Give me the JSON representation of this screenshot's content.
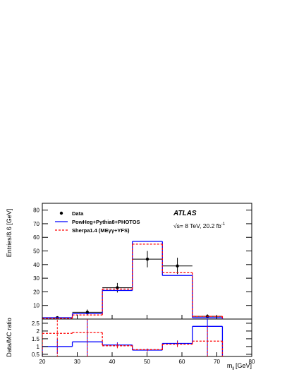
{
  "chart_data": [
    {
      "type": "histogram",
      "y_label": "Entries/8.6 [GeV]",
      "annotations": {
        "experiment": "ATLAS",
        "energy": "√s= 8 TeV, 20.2 fb",
        "energy_superscript": "-1"
      },
      "bins": [
        20,
        28.6,
        37.2,
        45.8,
        54.4,
        63,
        71.6
      ],
      "xlim": [
        20,
        80
      ],
      "ylim": [
        0,
        85
      ],
      "yticks": [
        10,
        20,
        30,
        40,
        50,
        60,
        70,
        80
      ],
      "legend": "top-left",
      "series": [
        {
          "name": "Data",
          "style": "points",
          "color": "#000000",
          "values": [
            1,
            5,
            23,
            44,
            39,
            2
          ],
          "errors": [
            1,
            2,
            3.5,
            6,
            6,
            1.5
          ]
        },
        {
          "name": "PowHeg+Pythia8+PHOTOS",
          "style": "solid",
          "color": "#0000ff",
          "values": [
            1,
            4,
            21,
            57,
            32,
            1
          ]
        },
        {
          "name": "Sherpa1.4 (MEγγ+YFS)",
          "style": "dashed",
          "color": "#ff0000",
          "values": [
            0.5,
            3,
            22,
            55,
            34,
            2
          ]
        }
      ]
    },
    {
      "type": "histogram",
      "y_label": "Data/MC ratio",
      "x_label": {
        "symbol": "m",
        "subscript": "ll",
        "unit": "[GeV]"
      },
      "bins": [
        20,
        28.6,
        37.2,
        45.8,
        54.4,
        63,
        71.6
      ],
      "xlim": [
        20,
        80
      ],
      "xticks": [
        20,
        30,
        40,
        50,
        60,
        70,
        80
      ],
      "ylim": [
        0.36,
        2.77
      ],
      "yticks": [
        0.5,
        1,
        1.5,
        2,
        2.5
      ],
      "series": [
        {
          "style": "solid",
          "color": "#0000ff",
          "values": [
            1,
            1.3,
            1.1,
            0.77,
            1.2,
            2.3
          ],
          "errors": [
            0.5,
            2,
            0.17,
            0.1,
            0.19,
            2
          ]
        },
        {
          "style": "dashed",
          "color": "#ff0000",
          "values": [
            1.85,
            1.9,
            1.05,
            0.8,
            1.15,
            1.35
          ],
          "errors": [
            2,
            2,
            0.16,
            0.1,
            0.18,
            1
          ]
        }
      ]
    }
  ]
}
